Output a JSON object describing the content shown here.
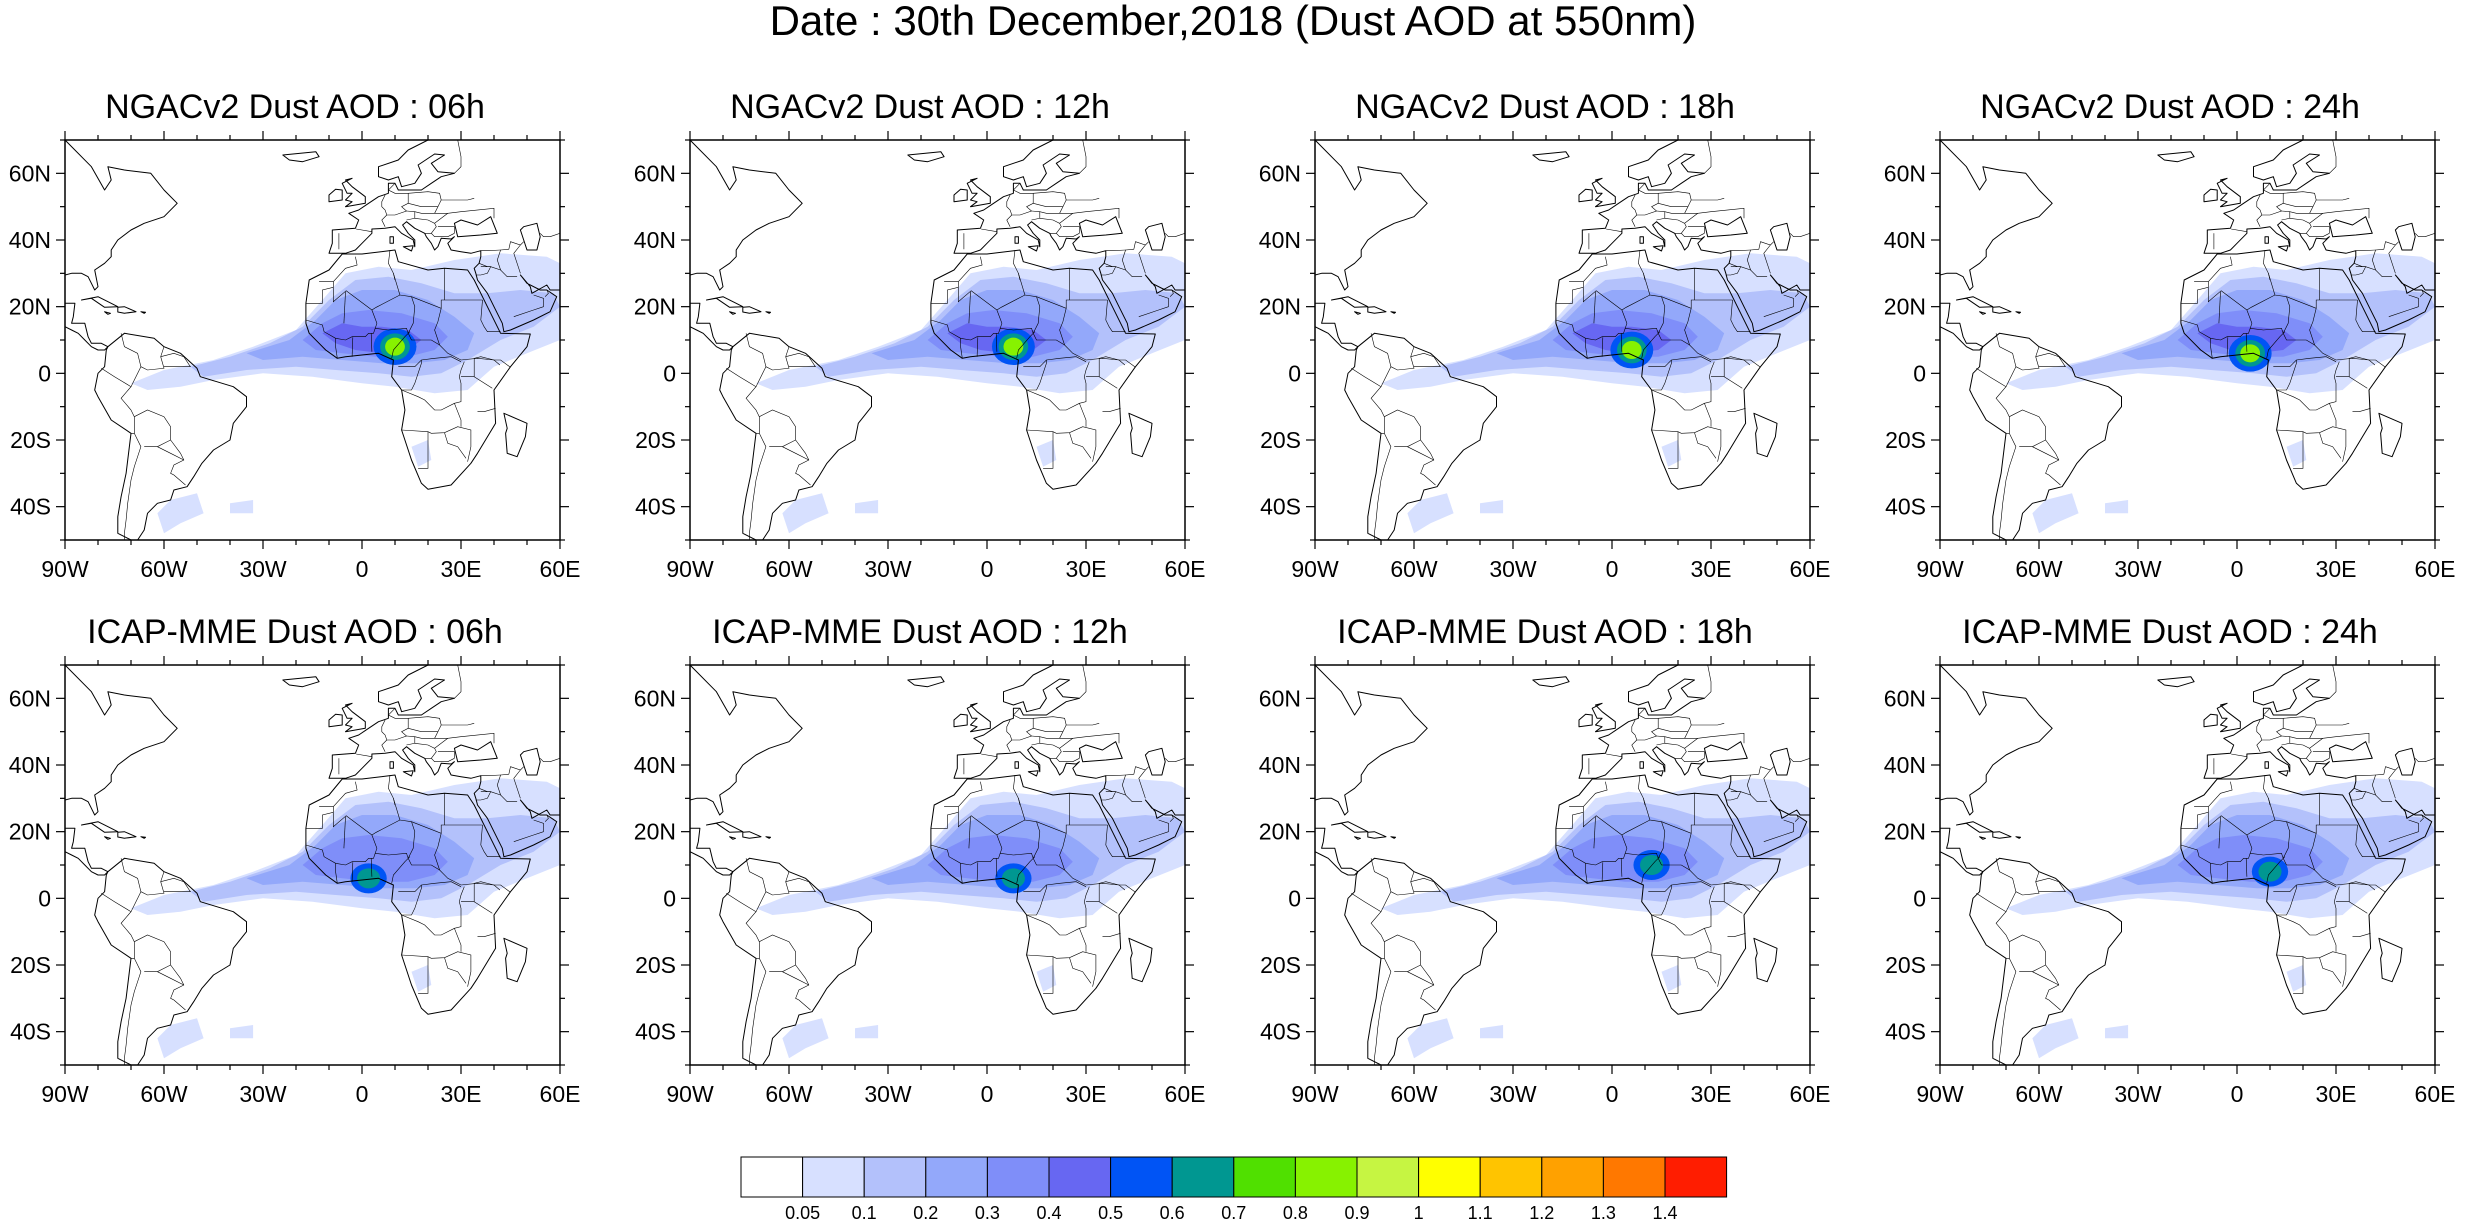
{
  "figure": {
    "title": "Date : 30th December,2018 (Dust AOD at 550nm)"
  },
  "map_axes": {
    "lat_labels": [
      "60N",
      "40N",
      "20N",
      "0",
      "20S",
      "40S"
    ],
    "lat_values": [
      60,
      40,
      20,
      0,
      -20,
      -40
    ],
    "lon_labels": [
      "90W",
      "60W",
      "30W",
      "0",
      "30E",
      "60E"
    ],
    "lon_values": [
      -90,
      -60,
      -30,
      0,
      30,
      60
    ],
    "lat_range": [
      -50,
      70
    ],
    "lon_range": [
      -90,
      60
    ]
  },
  "panels": [
    {
      "id": "ngac-06",
      "title": "NGACv2 Dust AOD : 06h",
      "model": "NGACv2",
      "lead": "06h",
      "peak": 0.8,
      "hotspot": [
        10,
        8
      ]
    },
    {
      "id": "ngac-12",
      "title": "NGACv2 Dust AOD : 12h",
      "model": "NGACv2",
      "lead": "12h",
      "peak": 0.8,
      "hotspot": [
        8,
        8
      ]
    },
    {
      "id": "ngac-18",
      "title": "NGACv2 Dust AOD : 18h",
      "model": "NGACv2",
      "lead": "18h",
      "peak": 0.8,
      "hotspot": [
        6,
        7
      ]
    },
    {
      "id": "ngac-24",
      "title": "NGACv2 Dust AOD : 24h",
      "model": "NGACv2",
      "lead": "24h",
      "peak": 0.8,
      "hotspot": [
        4,
        6
      ]
    },
    {
      "id": "icap-06",
      "title": "ICAP-MME Dust AOD : 06h",
      "model": "ICAP-MME",
      "lead": "06h",
      "peak": 0.6,
      "hotspot": [
        2,
        6
      ]
    },
    {
      "id": "icap-12",
      "title": "ICAP-MME Dust AOD : 12h",
      "model": "ICAP-MME",
      "lead": "12h",
      "peak": 0.6,
      "hotspot": [
        8,
        6
      ]
    },
    {
      "id": "icap-18",
      "title": "ICAP-MME Dust AOD : 18h",
      "model": "ICAP-MME",
      "lead": "18h",
      "peak": 0.6,
      "hotspot": [
        12,
        10
      ]
    },
    {
      "id": "icap-24",
      "title": "ICAP-MME Dust AOD : 24h",
      "model": "ICAP-MME",
      "lead": "24h",
      "peak": 0.6,
      "hotspot": [
        10,
        8
      ]
    }
  ],
  "colorbar": {
    "labels": [
      "0.05",
      "0.1",
      "0.2",
      "0.3",
      "0.4",
      "0.5",
      "0.6",
      "0.7",
      "0.8",
      "0.9",
      "1",
      "1.1",
      "1.2",
      "1.3",
      "1.4"
    ],
    "colors": [
      "#ffffff",
      "#d7e0ff",
      "#b3c1fb",
      "#93a8fa",
      "#7f8ef9",
      "#6767f2",
      "#0054f5",
      "#009791",
      "#50e000",
      "#87f200",
      "#c6f542",
      "#ffff00",
      "#ffc400",
      "#ffa100",
      "#ff7800",
      "#ff1d00"
    ]
  }
}
